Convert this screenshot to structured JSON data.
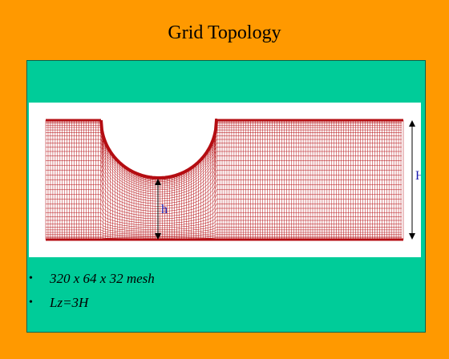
{
  "slide": {
    "title": "Grid Topology"
  },
  "figure": {
    "label_big_h": "H",
    "label_small_h": "h",
    "colors": {
      "mesh": "#b40d12",
      "label": "#1a1ab0",
      "panel": "#00cc99",
      "background": "#ff9900"
    }
  },
  "bullets": [
    {
      "marker": "•",
      "text": "320 x 64 x 32  mesh"
    },
    {
      "marker": "•",
      "text": "Lz=3H"
    }
  ]
}
